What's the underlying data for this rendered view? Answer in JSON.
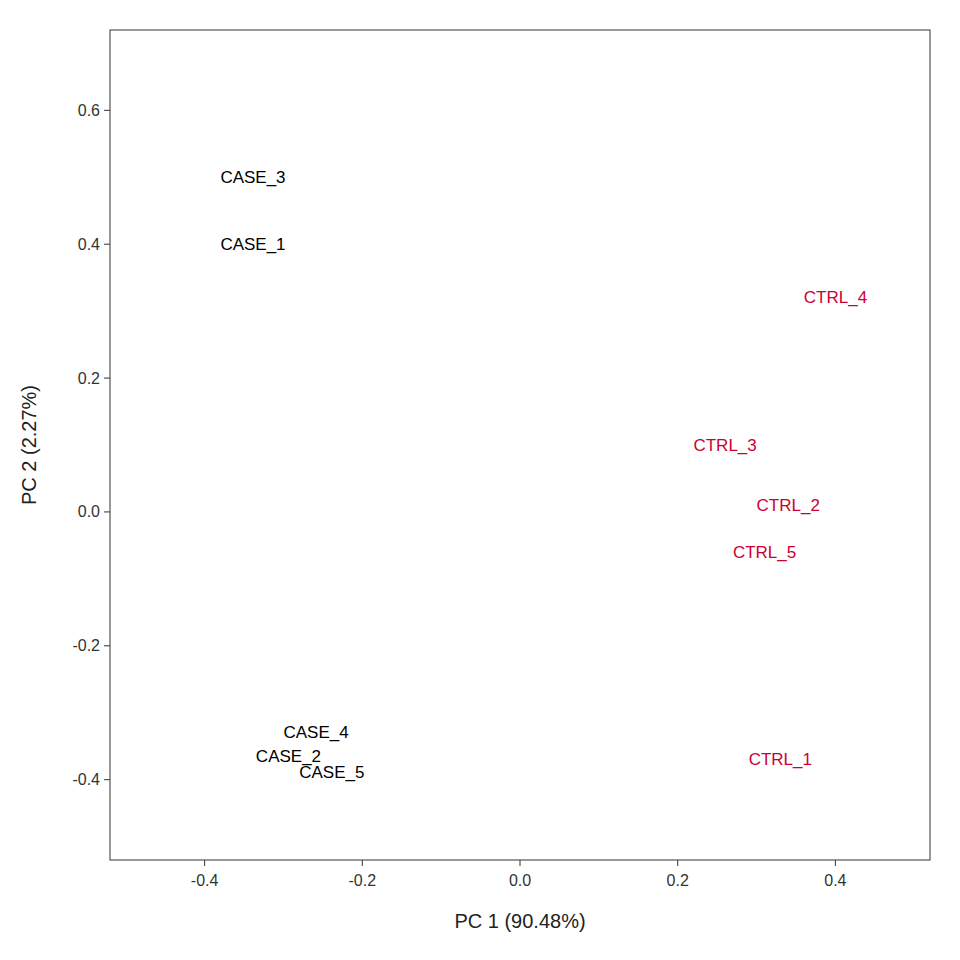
{
  "chart_data": {
    "type": "scatter",
    "xlabel": "PC 1 (90.48%)",
    "ylabel": "PC 2 (2.27%)",
    "xlim": [
      -0.52,
      0.52
    ],
    "ylim": [
      -0.52,
      0.72
    ],
    "xticks": [
      -0.4,
      -0.2,
      {
        "value": 0.0,
        "label": "0.0"
      },
      0.2,
      0.4
    ],
    "yticks": [
      -0.4,
      -0.2,
      {
        "value": 0.0,
        "label": "0.0"
      },
      0.2,
      0.4,
      0.6
    ],
    "labels": [
      "CASE_3",
      "CASE_1",
      "CASE_4",
      "CASE_2",
      "CASE_5",
      "CTRL_4",
      "CTRL_3",
      "CTRL_2",
      "CTRL_5",
      "CTRL_1"
    ],
    "x": [
      -0.38,
      -0.38,
      -0.3,
      -0.335,
      -0.28,
      0.36,
      0.22,
      0.3,
      0.27,
      0.29
    ],
    "values": [
      0.5,
      0.4,
      -0.33,
      -0.365,
      -0.39,
      0.32,
      0.1,
      0.01,
      -0.06,
      -0.37
    ],
    "colors": [
      "#000000",
      "#000000",
      "#000000",
      "#000000",
      "#000000",
      "#CC0033",
      "#CC0033",
      "#CC0033",
      "#CC0033",
      "#CC0033"
    ],
    "grid": false
  }
}
